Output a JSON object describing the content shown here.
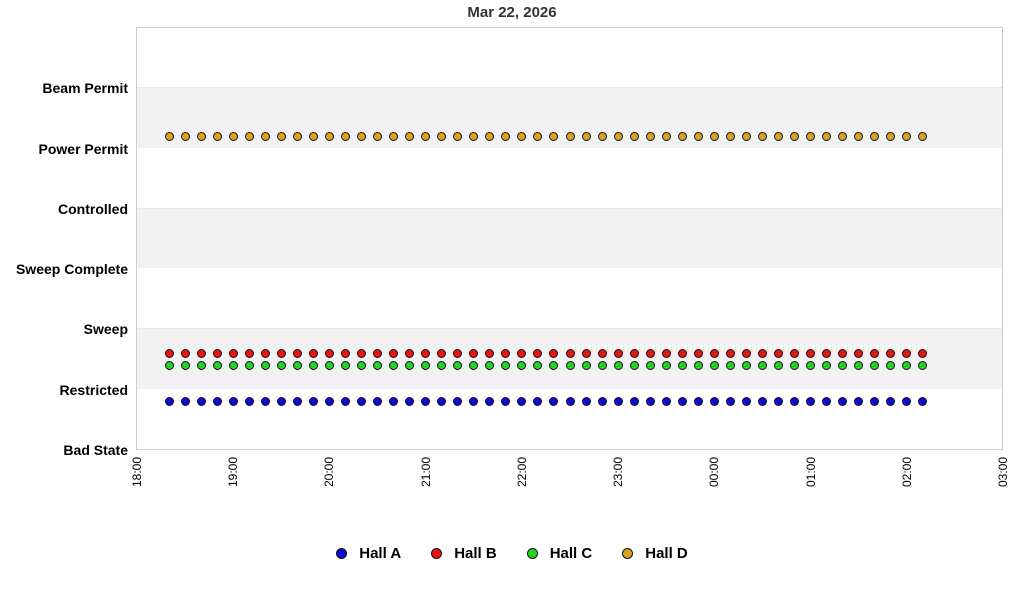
{
  "title": "Mar 22, 2026",
  "chart_data": {
    "type": "scatter",
    "title": "Mar 22, 2026",
    "description": "Hall state status timeline; dots every 10 minutes, slightly offset from their state line per hall for visibility",
    "y_categories_top_to_bottom": [
      "Beam Permit",
      "Power Permit",
      "Controlled",
      "Sweep Complete",
      "Sweep",
      "Restricted",
      "Bad State"
    ],
    "x_ticks": [
      "18:00",
      "19:00",
      "20:00",
      "21:00",
      "22:00",
      "23:00",
      "00:00",
      "01:00",
      "02:00",
      "03:00"
    ],
    "x_range_hours": 9,
    "sample_interval_minutes": 10,
    "times": [
      "18:20",
      "18:30",
      "18:40",
      "18:50",
      "19:00",
      "19:10",
      "19:20",
      "19:30",
      "19:40",
      "19:50",
      "20:00",
      "20:10",
      "20:20",
      "20:30",
      "20:40",
      "20:50",
      "21:00",
      "21:10",
      "21:20",
      "21:30",
      "21:40",
      "21:50",
      "22:00",
      "22:10",
      "22:20",
      "22:30",
      "22:40",
      "22:50",
      "23:00",
      "23:10",
      "23:20",
      "23:30",
      "23:40",
      "23:50",
      "00:00",
      "00:10",
      "00:20",
      "00:30",
      "00:40",
      "00:50",
      "01:00",
      "01:10",
      "01:20",
      "01:30",
      "01:40",
      "01:50",
      "02:00",
      "02:10"
    ],
    "series": [
      {
        "name": "Hall A",
        "color": "#0a0ada",
        "state": "Restricted",
        "offset_above_state": -0.2
      },
      {
        "name": "Hall B",
        "color": "#ee1111",
        "state": "Restricted",
        "offset_above_state": 0.6
      },
      {
        "name": "Hall C",
        "color": "#1fd71f",
        "state": "Restricted",
        "offset_above_state": 0.4
      },
      {
        "name": "Hall D",
        "color": "#d8a321",
        "state": "Power Permit",
        "offset_above_state": 0.2
      }
    ],
    "legend": [
      "Hall A",
      "Hall B",
      "Hall C",
      "Hall D"
    ],
    "legend_position": "bottom",
    "band_colors": [
      "#ffffff",
      "#f2f2f2"
    ],
    "colors": {
      "plot_border": "#cccccc",
      "title": "#333333",
      "labels": "#000000"
    },
    "grid": "alternating horizontal bands between category lines"
  }
}
